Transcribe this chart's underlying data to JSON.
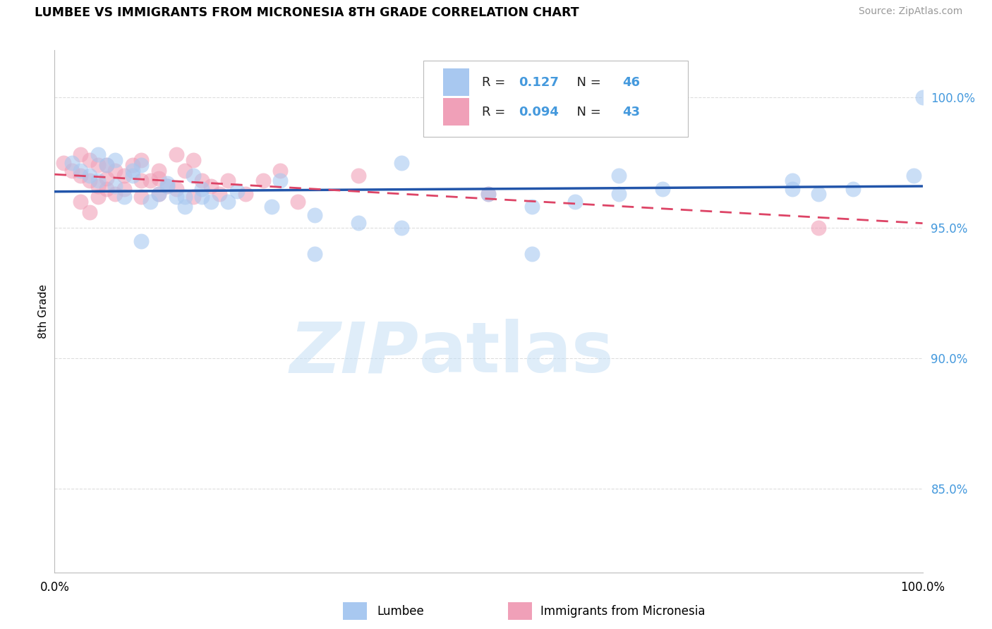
{
  "title": "LUMBEE VS IMMIGRANTS FROM MICRONESIA 8TH GRADE CORRELATION CHART",
  "source": "Source: ZipAtlas.com",
  "ylabel": "8th Grade",
  "yticks": [
    0.85,
    0.9,
    0.95,
    1.0
  ],
  "ytick_labels": [
    "85.0%",
    "90.0%",
    "95.0%",
    "100.0%"
  ],
  "xtick_labels": [
    "0.0%",
    "100.0%"
  ],
  "xlim": [
    0.0,
    1.0
  ],
  "ylim": [
    0.818,
    1.018
  ],
  "blue_R": 0.127,
  "blue_N": 46,
  "pink_R": 0.094,
  "pink_N": 43,
  "blue_color": "#A8C8F0",
  "pink_color": "#F0A0B8",
  "blue_line_color": "#2255AA",
  "pink_line_color": "#DD4466",
  "ytick_color": "#4499DD",
  "grid_color": "#DDDDDD",
  "blue_scatter_x": [
    0.02,
    0.03,
    0.04,
    0.05,
    0.06,
    0.07,
    0.08,
    0.09,
    0.1,
    0.11,
    0.12,
    0.13,
    0.14,
    0.15,
    0.16,
    0.17,
    0.18,
    0.07,
    0.05,
    0.09,
    0.13,
    0.17,
    0.21,
    0.26,
    0.3,
    0.35,
    0.4,
    0.5,
    0.6,
    0.65,
    0.7,
    0.1,
    0.2,
    0.3,
    0.25,
    0.15,
    0.85,
    0.88,
    0.92,
    0.4,
    0.55,
    0.65,
    0.85,
    0.99,
    0.55,
    1.0
  ],
  "blue_scatter_y": [
    0.975,
    0.972,
    0.97,
    0.968,
    0.974,
    0.966,
    0.962,
    0.97,
    0.974,
    0.96,
    0.963,
    0.966,
    0.962,
    0.958,
    0.97,
    0.965,
    0.96,
    0.976,
    0.978,
    0.972,
    0.967,
    0.962,
    0.964,
    0.968,
    0.955,
    0.952,
    0.95,
    0.963,
    0.96,
    0.97,
    0.965,
    0.945,
    0.96,
    0.94,
    0.958,
    0.962,
    0.968,
    0.963,
    0.965,
    0.975,
    0.958,
    0.963,
    0.965,
    0.97,
    0.94,
    1.0
  ],
  "pink_scatter_x": [
    0.01,
    0.02,
    0.03,
    0.03,
    0.04,
    0.04,
    0.05,
    0.05,
    0.06,
    0.06,
    0.07,
    0.07,
    0.08,
    0.09,
    0.1,
    0.1,
    0.11,
    0.12,
    0.12,
    0.13,
    0.14,
    0.15,
    0.16,
    0.17,
    0.18,
    0.19,
    0.2,
    0.22,
    0.24,
    0.26,
    0.05,
    0.06,
    0.08,
    0.1,
    0.12,
    0.14,
    0.16,
    0.35,
    0.5,
    0.88,
    0.03,
    0.04,
    0.28
  ],
  "pink_scatter_y": [
    0.975,
    0.972,
    0.978,
    0.97,
    0.976,
    0.968,
    0.974,
    0.966,
    0.974,
    0.965,
    0.972,
    0.963,
    0.97,
    0.974,
    0.976,
    0.968,
    0.968,
    0.972,
    0.963,
    0.966,
    0.978,
    0.972,
    0.976,
    0.968,
    0.966,
    0.963,
    0.968,
    0.963,
    0.968,
    0.972,
    0.962,
    0.969,
    0.965,
    0.962,
    0.969,
    0.965,
    0.962,
    0.97,
    0.963,
    0.95,
    0.96,
    0.956,
    0.96
  ]
}
